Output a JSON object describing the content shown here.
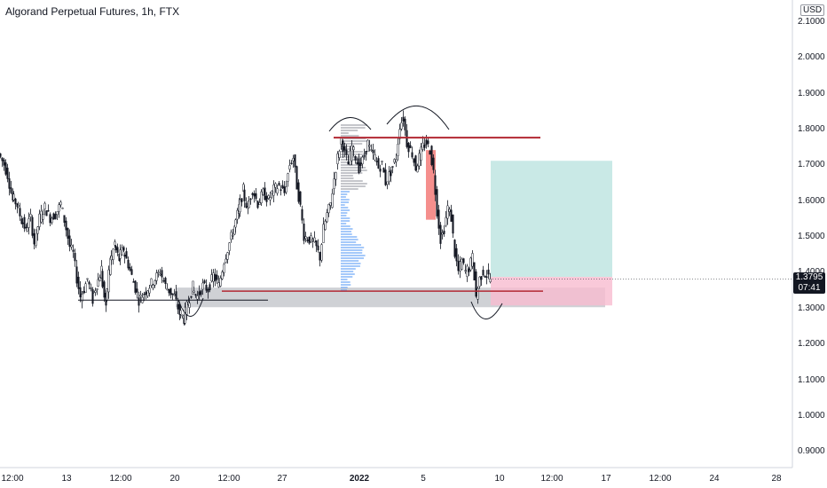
{
  "chart_title": "Algorand Perpetual Futures, 1h, FTX",
  "currency": "USD",
  "last_price": {
    "value": "1.3795",
    "countdown": "07:41"
  },
  "colors": {
    "up": "#26a69a",
    "down": "#ef5350",
    "candle": "#131722",
    "resistance": "#b22833",
    "zone": "#9598a1",
    "target": "#b2dfdb",
    "stop": "#f8bbd0",
    "volume_profile": "#5b9cf6"
  },
  "chart_data": {
    "type": "candlestick",
    "title": "Algorand Perpetual Futures, 1h, FTX",
    "y_ticks": [
      "0.9000",
      "1.0000",
      "1.1000",
      "1.2000",
      "1.3000",
      "1.4000",
      "1.5000",
      "1.6000",
      "1.7000",
      "1.8000",
      "1.9000",
      "2.0000",
      "2.1000"
    ],
    "ylim": [
      0.85,
      2.15
    ],
    "x_ticks": [
      "12:00",
      "13",
      "12:00",
      "20",
      "12:00",
      "27",
      "2022",
      "5",
      "10",
      "12:00",
      "17",
      "12:00",
      "24",
      "28"
    ],
    "series_path": [
      [
        0,
        1.73
      ],
      [
        6,
        1.7
      ],
      [
        10,
        1.67
      ],
      [
        15,
        1.61
      ],
      [
        20,
        1.59
      ],
      [
        25,
        1.55
      ],
      [
        30,
        1.52
      ],
      [
        36,
        1.55
      ],
      [
        40,
        1.48
      ],
      [
        46,
        1.55
      ],
      [
        52,
        1.58
      ],
      [
        58,
        1.55
      ],
      [
        64,
        1.56
      ],
      [
        70,
        1.59
      ],
      [
        76,
        1.52
      ],
      [
        80,
        1.47
      ],
      [
        84,
        1.45
      ],
      [
        88,
        1.38
      ],
      [
        92,
        1.33
      ],
      [
        96,
        1.35
      ],
      [
        100,
        1.38
      ],
      [
        105,
        1.33
      ],
      [
        110,
        1.36
      ],
      [
        115,
        1.4
      ],
      [
        120,
        1.31
      ],
      [
        125,
        1.42
      ],
      [
        130,
        1.47
      ],
      [
        135,
        1.44
      ],
      [
        140,
        1.46
      ],
      [
        146,
        1.42
      ],
      [
        152,
        1.37
      ],
      [
        158,
        1.32
      ],
      [
        164,
        1.34
      ],
      [
        170,
        1.36
      ],
      [
        176,
        1.38
      ],
      [
        182,
        1.4
      ],
      [
        188,
        1.36
      ],
      [
        194,
        1.34
      ],
      [
        198,
        1.33
      ],
      [
        203,
        1.29
      ],
      [
        208,
        1.27
      ],
      [
        213,
        1.31
      ],
      [
        218,
        1.35
      ],
      [
        224,
        1.33
      ],
      [
        230,
        1.36
      ],
      [
        236,
        1.35
      ],
      [
        242,
        1.39
      ],
      [
        248,
        1.36
      ],
      [
        254,
        1.43
      ],
      [
        260,
        1.48
      ],
      [
        265,
        1.52
      ],
      [
        270,
        1.57
      ],
      [
        275,
        1.62
      ],
      [
        280,
        1.58
      ],
      [
        286,
        1.63
      ],
      [
        292,
        1.59
      ],
      [
        298,
        1.62
      ],
      [
        304,
        1.6
      ],
      [
        310,
        1.63
      ],
      [
        316,
        1.64
      ],
      [
        322,
        1.62
      ],
      [
        328,
        1.7
      ],
      [
        332,
        1.72
      ],
      [
        336,
        1.64
      ],
      [
        340,
        1.58
      ],
      [
        344,
        1.5
      ],
      [
        350,
        1.49
      ],
      [
        356,
        1.48
      ],
      [
        362,
        1.44
      ],
      [
        366,
        1.52
      ],
      [
        370,
        1.56
      ],
      [
        374,
        1.59
      ],
      [
        378,
        1.66
      ],
      [
        382,
        1.72
      ],
      [
        386,
        1.77
      ],
      [
        390,
        1.73
      ],
      [
        394,
        1.7
      ],
      [
        398,
        1.75
      ],
      [
        402,
        1.72
      ],
      [
        406,
        1.69
      ],
      [
        410,
        1.71
      ],
      [
        416,
        1.76
      ],
      [
        420,
        1.73
      ],
      [
        424,
        1.72
      ],
      [
        428,
        1.69
      ],
      [
        432,
        1.7
      ],
      [
        436,
        1.65
      ],
      [
        442,
        1.68
      ],
      [
        448,
        1.72
      ],
      [
        452,
        1.81
      ],
      [
        456,
        1.83
      ],
      [
        460,
        1.76
      ],
      [
        466,
        1.73
      ],
      [
        470,
        1.69
      ],
      [
        474,
        1.72
      ],
      [
        478,
        1.75
      ],
      [
        482,
        1.76
      ],
      [
        486,
        1.74
      ],
      [
        490,
        1.68
      ],
      [
        494,
        1.57
      ],
      [
        498,
        1.49
      ],
      [
        502,
        1.52
      ],
      [
        506,
        1.58
      ],
      [
        510,
        1.55
      ],
      [
        514,
        1.45
      ],
      [
        518,
        1.4
      ],
      [
        522,
        1.43
      ],
      [
        526,
        1.4
      ],
      [
        530,
        1.41
      ],
      [
        534,
        1.44
      ],
      [
        538,
        1.33
      ],
      [
        542,
        1.38
      ],
      [
        546,
        1.4
      ],
      [
        550,
        1.39
      ],
      [
        554,
        1.38
      ]
    ],
    "annotations": {
      "resistance_line": {
        "price": 1.775
      },
      "support_line_left": {
        "price": 1.32
      },
      "support_line_red": {
        "price": 1.345
      },
      "support_zone": {
        "top": 1.355,
        "bottom": 1.3
      },
      "profit_zone": {
        "top": 1.71,
        "bottom": 1.385
      },
      "loss_zone": {
        "top": 1.385,
        "bottom": 1.305
      },
      "sell_spike": {
        "top": 1.74,
        "bottom": 1.545
      }
    },
    "grid": false
  }
}
